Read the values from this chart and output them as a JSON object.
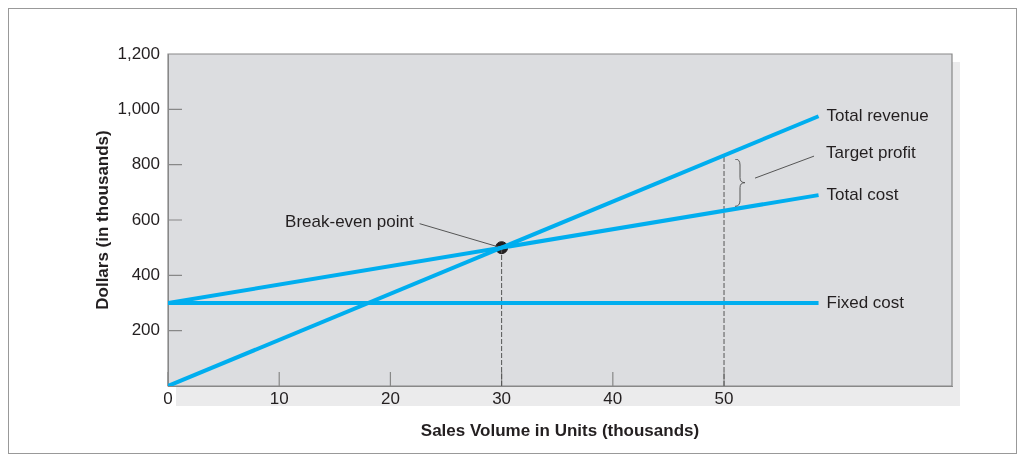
{
  "chart_data": {
    "type": "line",
    "xlabel": "Sales Volume in Units (thousands)",
    "ylabel": "Dollars (in thousands)",
    "xlim": [
      0,
      70.5
    ],
    "ylim": [
      0,
      1200
    ],
    "xticks": [
      0,
      10,
      20,
      30,
      40,
      50
    ],
    "yticks": [
      200,
      400,
      600,
      800,
      {
        "value": 1000,
        "label": "1,000"
      },
      {
        "value": 1200,
        "label": "1,200"
      }
    ],
    "grid": false,
    "legend": false,
    "marker": "none",
    "series": [
      {
        "name": "Total revenue",
        "color": "#00aeef",
        "x": [
          0,
          58.5
        ],
        "values": [
          0,
          975
        ]
      },
      {
        "name": "Total cost",
        "color": "#00aeef",
        "x": [
          0,
          58.5
        ],
        "values": [
          300,
          690
        ]
      },
      {
        "name": "Fixed cost",
        "color": "#00aeef",
        "x": [
          0,
          58.5
        ],
        "values": [
          300,
          300
        ]
      },
      {
        "color": "#555555",
        "line_style": "dashed",
        "x": [
          30,
          30
        ],
        "values": [
          0,
          500
        ]
      },
      {
        "color": "#555555",
        "line_style": "dashed",
        "x": [
          50,
          50
        ],
        "values": [
          0,
          833
        ]
      },
      {
        "type": "scatter",
        "color": "#231f20",
        "marker": "circle",
        "x": [
          30
        ],
        "values": [
          500
        ]
      }
    ],
    "annotations": [
      {
        "text": "Break-even point",
        "x": 30,
        "y": 500
      },
      "Target profit"
    ]
  }
}
